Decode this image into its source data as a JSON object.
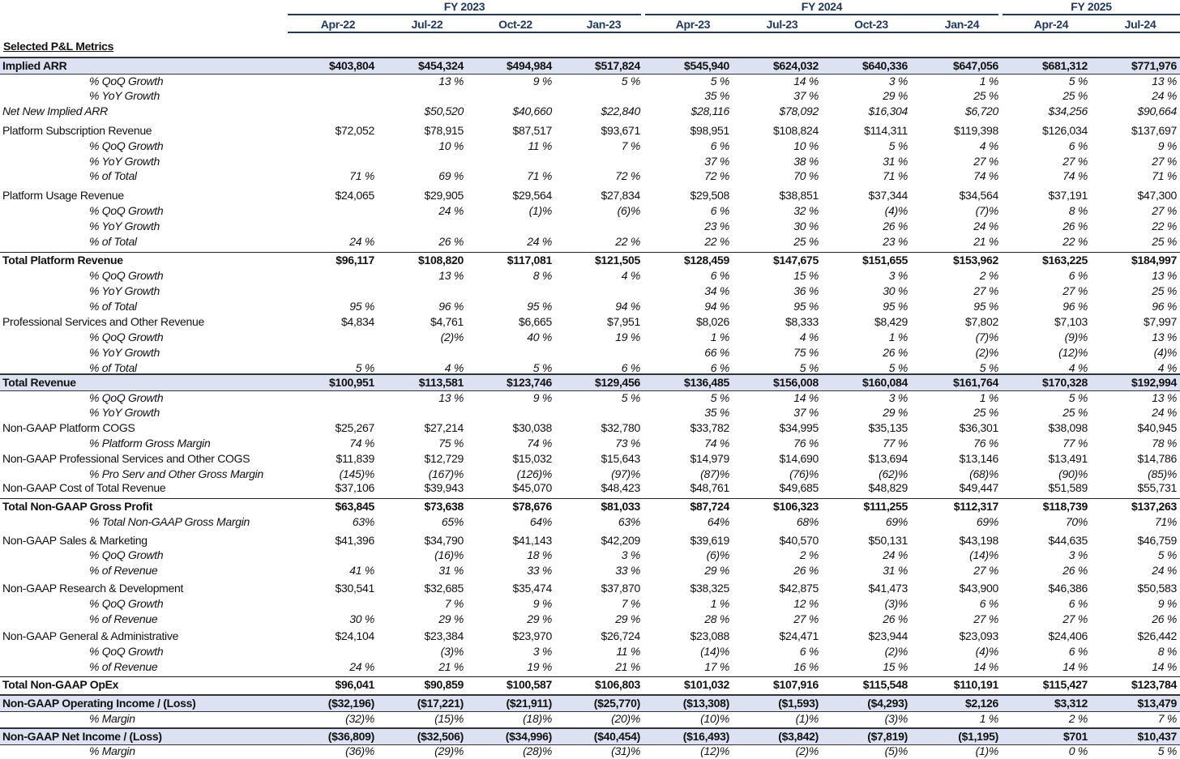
{
  "header": {
    "fiscal_years": [
      "FY 2023",
      "FY 2024",
      "FY 2025"
    ],
    "periods": [
      "Apr-22",
      "Jul-22",
      "Oct-22",
      "Jan-23",
      "Apr-23",
      "Jul-23",
      "Oct-23",
      "Jan-24",
      "Apr-24",
      "Jul-24"
    ],
    "section_title": "Selected P&L Metrics"
  },
  "colors": {
    "header": "#1f3864",
    "highlight_fill": "#dce2f1"
  },
  "rows": [
    {
      "label": "Implied ARR",
      "values": [
        "$403,804",
        "$454,324",
        "$494,984",
        "$517,824",
        "$545,940",
        "$624,032",
        "$640,336",
        "$647,056",
        "$681,312",
        "$771,976"
      ]
    },
    {
      "label": "% QoQ Growth",
      "values": [
        "",
        "13 %",
        "9 %",
        "5 %",
        "5 %",
        "14 %",
        "3 %",
        "1 %",
        "5 %",
        "13 %"
      ]
    },
    {
      "label": "% YoY Growth",
      "values": [
        "",
        "",
        "",
        "",
        "35 %",
        "37 %",
        "29 %",
        "25 %",
        "25 %",
        "24 %"
      ]
    },
    {
      "label": "Net New Implied ARR",
      "values": [
        "",
        "$50,520",
        "$40,660",
        "$22,840",
        "$28,116",
        "$78,092",
        "$16,304",
        "$6,720",
        "$34,256",
        "$90,664"
      ]
    },
    {
      "label": "Platform Subscription Revenue",
      "values": [
        "$72,052",
        "$78,915",
        "$87,517",
        "$93,671",
        "$98,951",
        "$108,824",
        "$114,311",
        "$119,398",
        "$126,034",
        "$137,697"
      ]
    },
    {
      "label": "% QoQ Growth",
      "values": [
        "",
        "10 %",
        "11 %",
        "7 %",
        "6 %",
        "10 %",
        "5 %",
        "4 %",
        "6 %",
        "9 %"
      ]
    },
    {
      "label": "% YoY Growth",
      "values": [
        "",
        "",
        "",
        "",
        "37 %",
        "38 %",
        "31 %",
        "27 %",
        "27 %",
        "27 %"
      ]
    },
    {
      "label": "% of Total",
      "values": [
        "71 %",
        "69 %",
        "71 %",
        "72 %",
        "72 %",
        "70 %",
        "71 %",
        "74 %",
        "74 %",
        "71 %"
      ]
    },
    {
      "label": "Platform Usage Revenue",
      "values": [
        "$24,065",
        "$29,905",
        "$29,564",
        "$27,834",
        "$29,508",
        "$38,851",
        "$37,344",
        "$34,564",
        "$37,191",
        "$47,300"
      ]
    },
    {
      "label": "% QoQ Growth",
      "values": [
        "",
        "24 %",
        "(1)%",
        "(6)%",
        "6 %",
        "32 %",
        "(4)%",
        "(7)%",
        "8 %",
        "27 %"
      ]
    },
    {
      "label": "% YoY Growth",
      "values": [
        "",
        "",
        "",
        "",
        "23 %",
        "30 %",
        "26 %",
        "24 %",
        "26 %",
        "22 %"
      ]
    },
    {
      "label": "% of Total",
      "values": [
        "24 %",
        "26 %",
        "24 %",
        "22 %",
        "22 %",
        "25 %",
        "23 %",
        "21 %",
        "22 %",
        "25 %"
      ]
    },
    {
      "label": "Total Platform Revenue",
      "values": [
        "$96,117",
        "$108,820",
        "$117,081",
        "$121,505",
        "$128,459",
        "$147,675",
        "$151,655",
        "$153,962",
        "$163,225",
        "$184,997"
      ]
    },
    {
      "label": "% QoQ Growth",
      "values": [
        "",
        "13 %",
        "8 %",
        "4 %",
        "6 %",
        "15 %",
        "3 %",
        "2 %",
        "6 %",
        "13 %"
      ]
    },
    {
      "label": "% YoY Growth",
      "values": [
        "",
        "",
        "",
        "",
        "34 %",
        "36 %",
        "30 %",
        "27 %",
        "27 %",
        "25 %"
      ]
    },
    {
      "label": "% of Total",
      "values": [
        "95 %",
        "96 %",
        "95 %",
        "94 %",
        "94 %",
        "95 %",
        "95 %",
        "95 %",
        "96 %",
        "96 %"
      ]
    },
    {
      "label": "Professional Services and Other Revenue",
      "values": [
        "$4,834",
        "$4,761",
        "$6,665",
        "$7,951",
        "$8,026",
        "$8,333",
        "$8,429",
        "$7,802",
        "$7,103",
        "$7,997"
      ]
    },
    {
      "label": "% QoQ Growth",
      "values": [
        "",
        "(2)%",
        "40 %",
        "19 %",
        "1 %",
        "4 %",
        "1 %",
        "(7)%",
        "(9)%",
        "13 %"
      ]
    },
    {
      "label": "% YoY Growth",
      "values": [
        "",
        "",
        "",
        "",
        "66 %",
        "75 %",
        "26 %",
        "(2)%",
        "(12)%",
        "(4)%"
      ]
    },
    {
      "label": "% of Total",
      "values": [
        "5 %",
        "4 %",
        "5 %",
        "6 %",
        "6 %",
        "5 %",
        "5 %",
        "5 %",
        "4 %",
        "4 %"
      ]
    },
    {
      "label": "Total Revenue",
      "values": [
        "$100,951",
        "$113,581",
        "$123,746",
        "$129,456",
        "$136,485",
        "$156,008",
        "$160,084",
        "$161,764",
        "$170,328",
        "$192,994"
      ]
    },
    {
      "label": "% QoQ Growth",
      "values": [
        "",
        "13 %",
        "9 %",
        "5 %",
        "5 %",
        "14 %",
        "3 %",
        "1 %",
        "5 %",
        "13 %"
      ]
    },
    {
      "label": "% YoY Growth",
      "values": [
        "",
        "",
        "",
        "",
        "35 %",
        "37 %",
        "29 %",
        "25 %",
        "25 %",
        "24 %"
      ]
    },
    {
      "label": "Non-GAAP Platform COGS",
      "values": [
        "$25,267",
        "$27,214",
        "$30,038",
        "$32,780",
        "$33,782",
        "$34,995",
        "$35,135",
        "$36,301",
        "$38,098",
        "$40,945"
      ]
    },
    {
      "label": "% Platform Gross Margin",
      "values": [
        "74 %",
        "75 %",
        "74 %",
        "73 %",
        "74 %",
        "76 %",
        "77 %",
        "76 %",
        "77 %",
        "78 %"
      ]
    },
    {
      "label": "Non-GAAP Professional Services and Other COGS",
      "values": [
        "$11,839",
        "$12,729",
        "$15,032",
        "$15,643",
        "$14,979",
        "$14,690",
        "$13,694",
        "$13,146",
        "$13,491",
        "$14,786"
      ]
    },
    {
      "label": "% Pro Serv and Other Gross Margin",
      "values": [
        "(145)%",
        "(167)%",
        "(126)%",
        "(97)%",
        "(87)%",
        "(76)%",
        "(62)%",
        "(68)%",
        "(90)%",
        "(85)%"
      ]
    },
    {
      "label": "Non-GAAP Cost of Total Revenue",
      "values": [
        "$37,106",
        "$39,943",
        "$45,070",
        "$48,423",
        "$48,761",
        "$49,685",
        "$48,829",
        "$49,447",
        "$51,589",
        "$55,731"
      ]
    },
    {
      "label": "Total Non-GAAP Gross Profit",
      "values": [
        "$63,845",
        "$73,638",
        "$78,676",
        "$81,033",
        "$87,724",
        "$106,323",
        "$111,255",
        "$112,317",
        "$118,739",
        "$137,263"
      ]
    },
    {
      "label": "% Total Non-GAAP Gross Margin",
      "values": [
        "63%",
        "65%",
        "64%",
        "63%",
        "64%",
        "68%",
        "69%",
        "69%",
        "70%",
        "71%"
      ]
    },
    {
      "label": "Non-GAAP Sales & Marketing",
      "values": [
        "$41,396",
        "$34,790",
        "$41,143",
        "$42,209",
        "$39,619",
        "$40,570",
        "$50,131",
        "$43,198",
        "$44,635",
        "$46,759"
      ]
    },
    {
      "label": "% QoQ Growth",
      "values": [
        "",
        "(16)%",
        "18 %",
        "3 %",
        "(6)%",
        "2 %",
        "24 %",
        "(14)%",
        "3 %",
        "5 %"
      ]
    },
    {
      "label": "% of Revenue",
      "values": [
        "41 %",
        "31 %",
        "33 %",
        "33 %",
        "29 %",
        "26 %",
        "31 %",
        "27 %",
        "26 %",
        "24 %"
      ]
    },
    {
      "label": "Non-GAAP Research & Development",
      "values": [
        "$30,541",
        "$32,685",
        "$35,474",
        "$37,870",
        "$38,325",
        "$42,875",
        "$41,473",
        "$43,900",
        "$46,386",
        "$50,583"
      ]
    },
    {
      "label": "% QoQ Growth",
      "values": [
        "",
        "7 %",
        "9 %",
        "7 %",
        "1 %",
        "12 %",
        "(3)%",
        "6 %",
        "6 %",
        "9 %"
      ]
    },
    {
      "label": "% of Revenue",
      "values": [
        "30 %",
        "29 %",
        "29 %",
        "29 %",
        "28 %",
        "27 %",
        "26 %",
        "27 %",
        "27 %",
        "26 %"
      ]
    },
    {
      "label": "Non-GAAP General & Administrative",
      "values": [
        "$24,104",
        "$23,384",
        "$23,970",
        "$26,724",
        "$23,088",
        "$24,471",
        "$23,944",
        "$23,093",
        "$24,406",
        "$26,442"
      ]
    },
    {
      "label": "% QoQ Growth",
      "values": [
        "",
        "(3)%",
        "3 %",
        "11 %",
        "(14)%",
        "6 %",
        "(2)%",
        "(4)%",
        "6 %",
        "8 %"
      ]
    },
    {
      "label": "% of Revenue",
      "values": [
        "24 %",
        "21 %",
        "19 %",
        "21 %",
        "17 %",
        "16 %",
        "15 %",
        "14 %",
        "14 %",
        "14 %"
      ]
    },
    {
      "label": "Total Non-GAAP OpEx",
      "values": [
        "$96,041",
        "$90,859",
        "$100,587",
        "$106,803",
        "$101,032",
        "$107,916",
        "$115,548",
        "$110,191",
        "$115,427",
        "$123,784"
      ]
    },
    {
      "label": "Non-GAAP Operating Income / (Loss)",
      "values": [
        "($32,196)",
        "($17,221)",
        "($21,911)",
        "($25,770)",
        "($13,308)",
        "($1,593)",
        "($4,293)",
        "$2,126",
        "$3,312",
        "$13,479"
      ]
    },
    {
      "label": "% Margin",
      "values": [
        "(32)%",
        "(15)%",
        "(18)%",
        "(20)%",
        "(10)%",
        "(1)%",
        "(3)%",
        "1 %",
        "2 %",
        "7 %"
      ]
    },
    {
      "label": "Non-GAAP Net Income / (Loss)",
      "values": [
        "($36,809)",
        "($32,506)",
        "($34,996)",
        "($40,454)",
        "($16,493)",
        "($3,842)",
        "($7,819)",
        "($1,195)",
        "$701",
        "$10,437"
      ]
    },
    {
      "label": "% Margin",
      "values": [
        "(36)%",
        "(29)%",
        "(28)%",
        "(31)%",
        "(12)%",
        "(2)%",
        "(5)%",
        "(1)%",
        "0 %",
        "5 %"
      ]
    }
  ]
}
